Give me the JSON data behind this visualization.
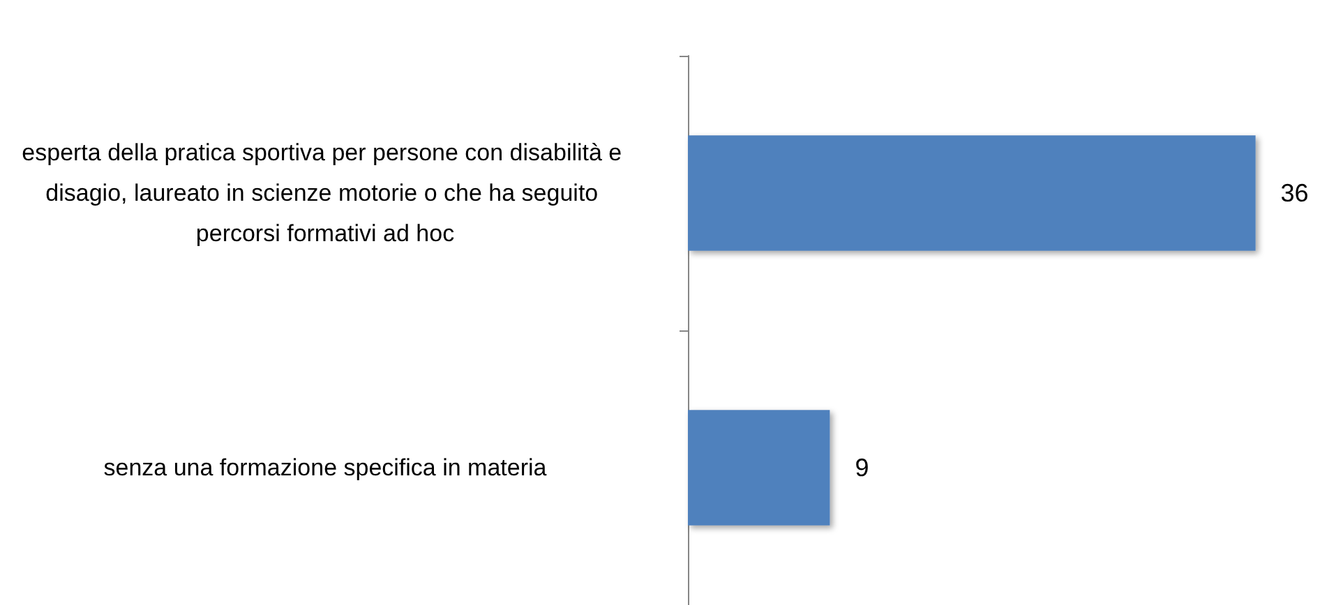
{
  "chart_data": {
    "type": "bar",
    "orientation": "horizontal",
    "categories": [
      "esperta della pratica sportiva per persone con disabilità e disagio, laureato in scienze motorie o che ha seguito percorsi formativi ad hoc",
      "senza una formazione specifica in materia"
    ],
    "values": [
      36,
      9
    ],
    "color": "#4f81bd",
    "data_labels": true
  }
}
